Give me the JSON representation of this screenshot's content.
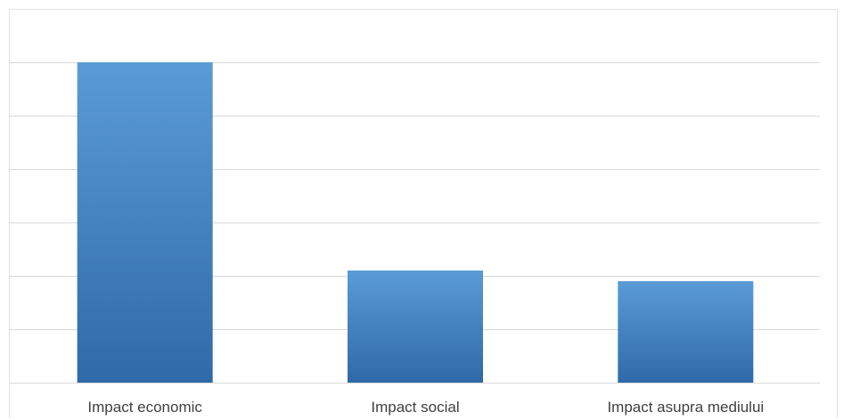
{
  "chart_data": {
    "type": "bar",
    "categories": [
      "Impact economic",
      "Impact social",
      "Impact asupra mediului"
    ],
    "values": [
      6,
      2.1,
      1.9
    ],
    "ylim": [
      0,
      7
    ],
    "grid": true,
    "legend": "none",
    "title": "",
    "xlabel": "",
    "ylabel": "",
    "colors": {
      "bar_top": "#5b9bd5",
      "bar_bottom": "#2e6aa8",
      "gridline": "#d9d9d9",
      "axis": "#d9d9d9",
      "label": "#404040"
    }
  }
}
